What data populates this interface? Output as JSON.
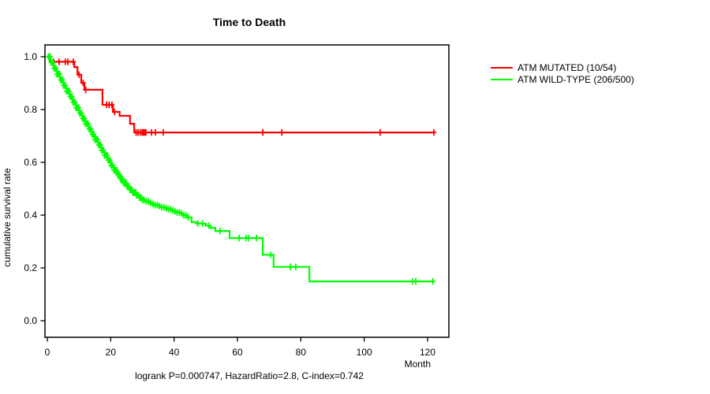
{
  "title": "Time to Death",
  "footer": "logrank P=0.000747, HazardRatio=2.8, C-index=0.742",
  "axes": {
    "x_label": "Month",
    "y_label": "cumulative survival rate"
  },
  "chart_data": {
    "type": "line",
    "subtype": "kaplan-meier-step-curve",
    "title": "Time to Death",
    "xlabel": "Month",
    "ylabel": "cumulative survival rate",
    "annotation": "logrank P=0.000747, HazardRatio=2.8, C-index=0.742",
    "xlim": [
      0,
      127
    ],
    "ylim": [
      0,
      1.0
    ],
    "x_ticks": [
      0,
      20,
      40,
      60,
      80,
      100,
      120
    ],
    "y_ticks": [
      "1.0",
      "0.8",
      "0.6",
      "0.4",
      "0.2",
      "0.0"
    ],
    "grid": false,
    "legend_position": "outside-right",
    "series": [
      {
        "name": "ATM MUTATED (10/54)",
        "color": "#ff0000",
        "steps": [
          [
            0,
            1.0
          ],
          [
            0.8,
            0.981
          ],
          [
            8.5,
            0.961
          ],
          [
            9.5,
            0.932
          ],
          [
            10.7,
            0.901
          ],
          [
            11.7,
            0.875
          ],
          [
            17.4,
            0.818
          ],
          [
            20.7,
            0.791
          ],
          [
            22.8,
            0.776
          ],
          [
            26.1,
            0.746
          ],
          [
            27.4,
            0.713
          ],
          [
            122,
            0.713
          ]
        ],
        "censor_marks": [
          2,
          3.7,
          5.7,
          6.5,
          8.2,
          10,
          11.3,
          12.1,
          18.7,
          19.5,
          20.4,
          21.2,
          28,
          28.6,
          29.3,
          29.9,
          30.3,
          30.7,
          31.1,
          32.9,
          34.1,
          36.6,
          68,
          74,
          105,
          122
        ],
        "censor_dense_ranges": []
      },
      {
        "name": "ATM WILD-TYPE (206/500)",
        "color": "#00ff00",
        "steps": [
          [
            0,
            1.0
          ],
          [
            1,
            0.978
          ],
          [
            2,
            0.956
          ],
          [
            3,
            0.934
          ],
          [
            4,
            0.912
          ],
          [
            5,
            0.891
          ],
          [
            6,
            0.87
          ],
          [
            7,
            0.849
          ],
          [
            8,
            0.828
          ],
          [
            9,
            0.807
          ],
          [
            10,
            0.786
          ],
          [
            11,
            0.766
          ],
          [
            12,
            0.746
          ],
          [
            13,
            0.726
          ],
          [
            14,
            0.706
          ],
          [
            15,
            0.686
          ],
          [
            16,
            0.666
          ],
          [
            17,
            0.646
          ],
          [
            18,
            0.627
          ],
          [
            19,
            0.608
          ],
          [
            20,
            0.588
          ],
          [
            21,
            0.57
          ],
          [
            22,
            0.553
          ],
          [
            23,
            0.537
          ],
          [
            24,
            0.522
          ],
          [
            25,
            0.508
          ],
          [
            26,
            0.496
          ],
          [
            27,
            0.485
          ],
          [
            28,
            0.475
          ],
          [
            29,
            0.466
          ],
          [
            30,
            0.458
          ],
          [
            31,
            0.452
          ],
          [
            32,
            0.447
          ],
          [
            33,
            0.442
          ],
          [
            34,
            0.438
          ],
          [
            35,
            0.434
          ],
          [
            36,
            0.43
          ],
          [
            37,
            0.426
          ],
          [
            38,
            0.422
          ],
          [
            39,
            0.418
          ],
          [
            40,
            0.414
          ],
          [
            41,
            0.41
          ],
          [
            42,
            0.406
          ],
          [
            43,
            0.399
          ],
          [
            44,
            0.391
          ],
          [
            45.5,
            0.373
          ],
          [
            47,
            0.368
          ],
          [
            50,
            0.36
          ],
          [
            51.5,
            0.352
          ],
          [
            53,
            0.34
          ],
          [
            57.5,
            0.313
          ],
          [
            68,
            0.25
          ],
          [
            71.4,
            0.204
          ],
          [
            82.7,
            0.149
          ],
          [
            122,
            0.149
          ]
        ],
        "censor_marks": [
          47.5,
          49,
          51,
          54.5,
          60.5,
          62.7,
          63.5,
          66,
          70.5,
          76.7,
          78.4,
          115.3,
          116.3,
          121.7
        ],
        "censor_dense_ranges": [
          {
            "from": 0.3,
            "to": 30,
            "step": 0.3
          },
          {
            "from": 30.5,
            "to": 45,
            "step": 0.7
          }
        ]
      }
    ]
  }
}
